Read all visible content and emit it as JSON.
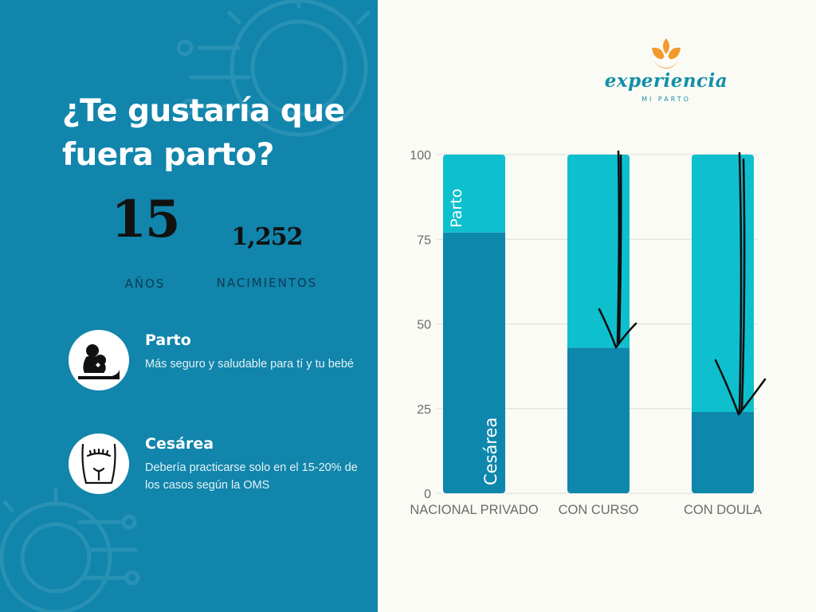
{
  "headline": "¿Te gustaría que fuera parto?",
  "stats": [
    {
      "value": "15",
      "label": "AÑOS"
    },
    {
      "value": "1,252",
      "label": "NACIMIENTOS"
    }
  ],
  "info": [
    {
      "icon": "mother-baby-icon",
      "title": "Parto",
      "description": "Más seguro y saludable para tí y tu bebé"
    },
    {
      "icon": "cesarean-belly-icon",
      "title": "Cesárea",
      "description": "Debería practicarse solo en el 15-20% de los casos según la OMS"
    }
  ],
  "logo": {
    "word": "experiencia",
    "subtitle": "MI PARTO",
    "icon": "flower-logo-icon"
  },
  "colors": {
    "left_panel": "#1185ab",
    "background": "#fbfbf5",
    "bar_dark": "#0e87ac",
    "bar_light": "#0ec0ce",
    "logo_orange": "#f39a2b",
    "logo_teal": "#148fa8"
  },
  "chart_data": {
    "type": "bar",
    "stacked": true,
    "categories": [
      "NACIONAL PRIVADO",
      "CON CURSO",
      "CON DOULA"
    ],
    "series": [
      {
        "name": "Cesárea",
        "color": "#0e87ac",
        "values": [
          77,
          43,
          24
        ]
      },
      {
        "name": "Parto",
        "color": "#0ec0ce",
        "values": [
          23,
          57,
          76
        ]
      }
    ],
    "ylim": [
      0,
      100
    ],
    "yticks": [
      0,
      25,
      50,
      75,
      100
    ],
    "grid": true,
    "annotations": "hand-drawn downward arrows on CON CURSO and CON DOULA"
  }
}
